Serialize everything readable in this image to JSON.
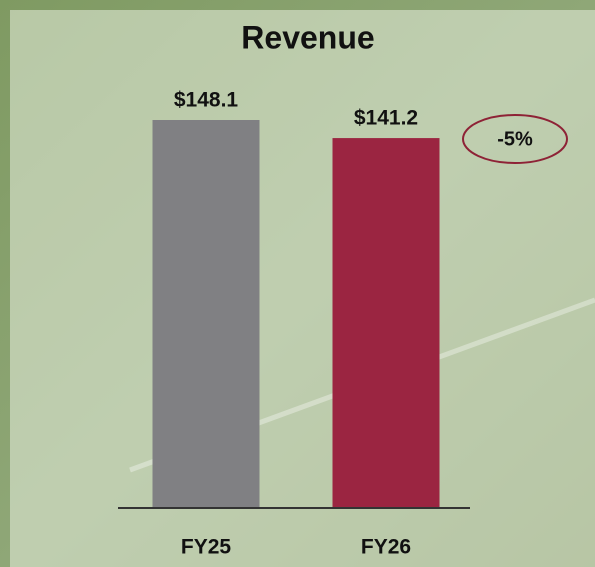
{
  "chart_data": {
    "type": "bar",
    "title": "Revenue",
    "categories": [
      "FY25",
      "FY26"
    ],
    "values": [
      148.1,
      141.2
    ],
    "value_labels": [
      "$148.1",
      "$141.2"
    ],
    "colors": [
      "#808083",
      "#9b2541"
    ],
    "annotation": "-5%"
  }
}
